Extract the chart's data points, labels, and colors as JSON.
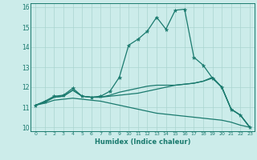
{
  "xlabel": "Humidex (Indice chaleur)",
  "bg_color": "#ccecea",
  "grid_color": "#aad4d0",
  "line_color": "#1a7a6e",
  "xlim": [
    -0.5,
    23.5
  ],
  "ylim": [
    9.8,
    16.2
  ],
  "yticks": [
    10,
    11,
    12,
    13,
    14,
    15,
    16
  ],
  "xticks": [
    0,
    1,
    2,
    3,
    4,
    5,
    6,
    7,
    8,
    9,
    10,
    11,
    12,
    13,
    14,
    15,
    16,
    17,
    18,
    19,
    20,
    21,
    22,
    23
  ],
  "series": {
    "line1_x": [
      0,
      1,
      2,
      3,
      4,
      5,
      6,
      7,
      8,
      9,
      10,
      11,
      12,
      13,
      14,
      15,
      16,
      17,
      18,
      19,
      20,
      21,
      22,
      23
    ],
    "line1_y": [
      11.1,
      11.3,
      11.55,
      11.6,
      11.95,
      11.55,
      11.5,
      11.55,
      11.8,
      12.5,
      14.1,
      14.4,
      14.8,
      15.5,
      14.9,
      15.85,
      15.9,
      13.5,
      13.1,
      12.45,
      12.0,
      10.9,
      10.6,
      10.0
    ],
    "line2_x": [
      0,
      1,
      2,
      3,
      4,
      5,
      6,
      7,
      8,
      9,
      10,
      11,
      12,
      13,
      14,
      15,
      16,
      17,
      18,
      19,
      20,
      21,
      22,
      23
    ],
    "line2_y": [
      11.1,
      11.25,
      11.5,
      11.55,
      11.85,
      11.55,
      11.5,
      11.5,
      11.55,
      11.6,
      11.65,
      11.7,
      11.8,
      11.9,
      12.0,
      12.1,
      12.15,
      12.2,
      12.3,
      12.45,
      12.0,
      10.9,
      10.6,
      10.0
    ],
    "line3_x": [
      0,
      1,
      2,
      3,
      4,
      5,
      6,
      7,
      8,
      9,
      10,
      11,
      12,
      13,
      14,
      15,
      16,
      17,
      18,
      19,
      20,
      21,
      22,
      23
    ],
    "line3_y": [
      11.1,
      11.25,
      11.5,
      11.55,
      11.85,
      11.55,
      11.5,
      11.5,
      11.6,
      11.75,
      11.85,
      11.95,
      12.05,
      12.1,
      12.1,
      12.1,
      12.15,
      12.2,
      12.3,
      12.5,
      12.0,
      10.9,
      10.6,
      10.0
    ],
    "line4_x": [
      0,
      1,
      2,
      3,
      4,
      5,
      6,
      7,
      8,
      9,
      10,
      11,
      12,
      13,
      14,
      15,
      16,
      17,
      18,
      19,
      20,
      21,
      22,
      23
    ],
    "line4_y": [
      11.1,
      11.2,
      11.35,
      11.4,
      11.45,
      11.4,
      11.35,
      11.3,
      11.2,
      11.1,
      11.0,
      10.9,
      10.8,
      10.7,
      10.65,
      10.6,
      10.55,
      10.5,
      10.45,
      10.4,
      10.35,
      10.25,
      10.1,
      10.0
    ]
  }
}
